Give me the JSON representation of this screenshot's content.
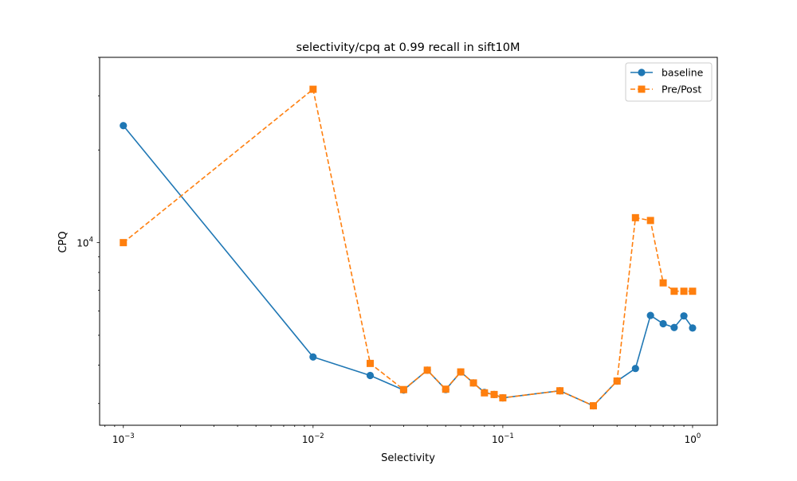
{
  "chart_data": {
    "type": "line",
    "title": "selectivity/cpq at 0.99 recall in sift10M",
    "xlabel": "Selectivity",
    "ylabel": "CPQ",
    "xscale": "log",
    "yscale": "log",
    "xlim": [
      0.00075,
      1.35
    ],
    "ylim": [
      2550,
      40000
    ],
    "x_ticks": [
      {
        "value": 0.001,
        "base": "10",
        "exp": "−3"
      },
      {
        "value": 0.01,
        "base": "10",
        "exp": "−2"
      },
      {
        "value": 0.1,
        "base": "10",
        "exp": "−1"
      },
      {
        "value": 1,
        "base": "10",
        "exp": "0"
      }
    ],
    "y_ticks": [
      {
        "value": 10000,
        "base": "10",
        "exp": "4"
      }
    ],
    "grid": false,
    "legend_position": "top-right",
    "series": [
      {
        "name": "baseline",
        "color": "#1f77b4",
        "marker": "circle",
        "linestyle": "solid",
        "x": [
          0.001,
          0.01,
          0.02,
          0.03,
          0.04,
          0.05,
          0.06,
          0.07,
          0.08,
          0.09,
          0.1,
          0.2,
          0.3,
          0.4,
          0.5,
          0.6,
          0.7,
          0.8,
          0.9,
          1.0
        ],
        "y": [
          24000,
          4250,
          3700,
          3320,
          3850,
          3330,
          3800,
          3500,
          3260,
          3210,
          3130,
          3300,
          2950,
          3550,
          3900,
          5800,
          5450,
          5300,
          5780,
          5280
        ]
      },
      {
        "name": "Pre/Post",
        "color": "#ff7f0e",
        "marker": "square",
        "linestyle": "dashed",
        "x": [
          0.001,
          0.01,
          0.02,
          0.03,
          0.04,
          0.05,
          0.06,
          0.07,
          0.08,
          0.09,
          0.1,
          0.2,
          0.3,
          0.4,
          0.5,
          0.6,
          0.7,
          0.8,
          0.9,
          1.0
        ],
        "y": [
          10000,
          31500,
          4050,
          3330,
          3850,
          3340,
          3800,
          3500,
          3250,
          3210,
          3130,
          3300,
          2950,
          3550,
          12050,
          11800,
          7400,
          6950,
          6950,
          6950
        ]
      }
    ]
  }
}
